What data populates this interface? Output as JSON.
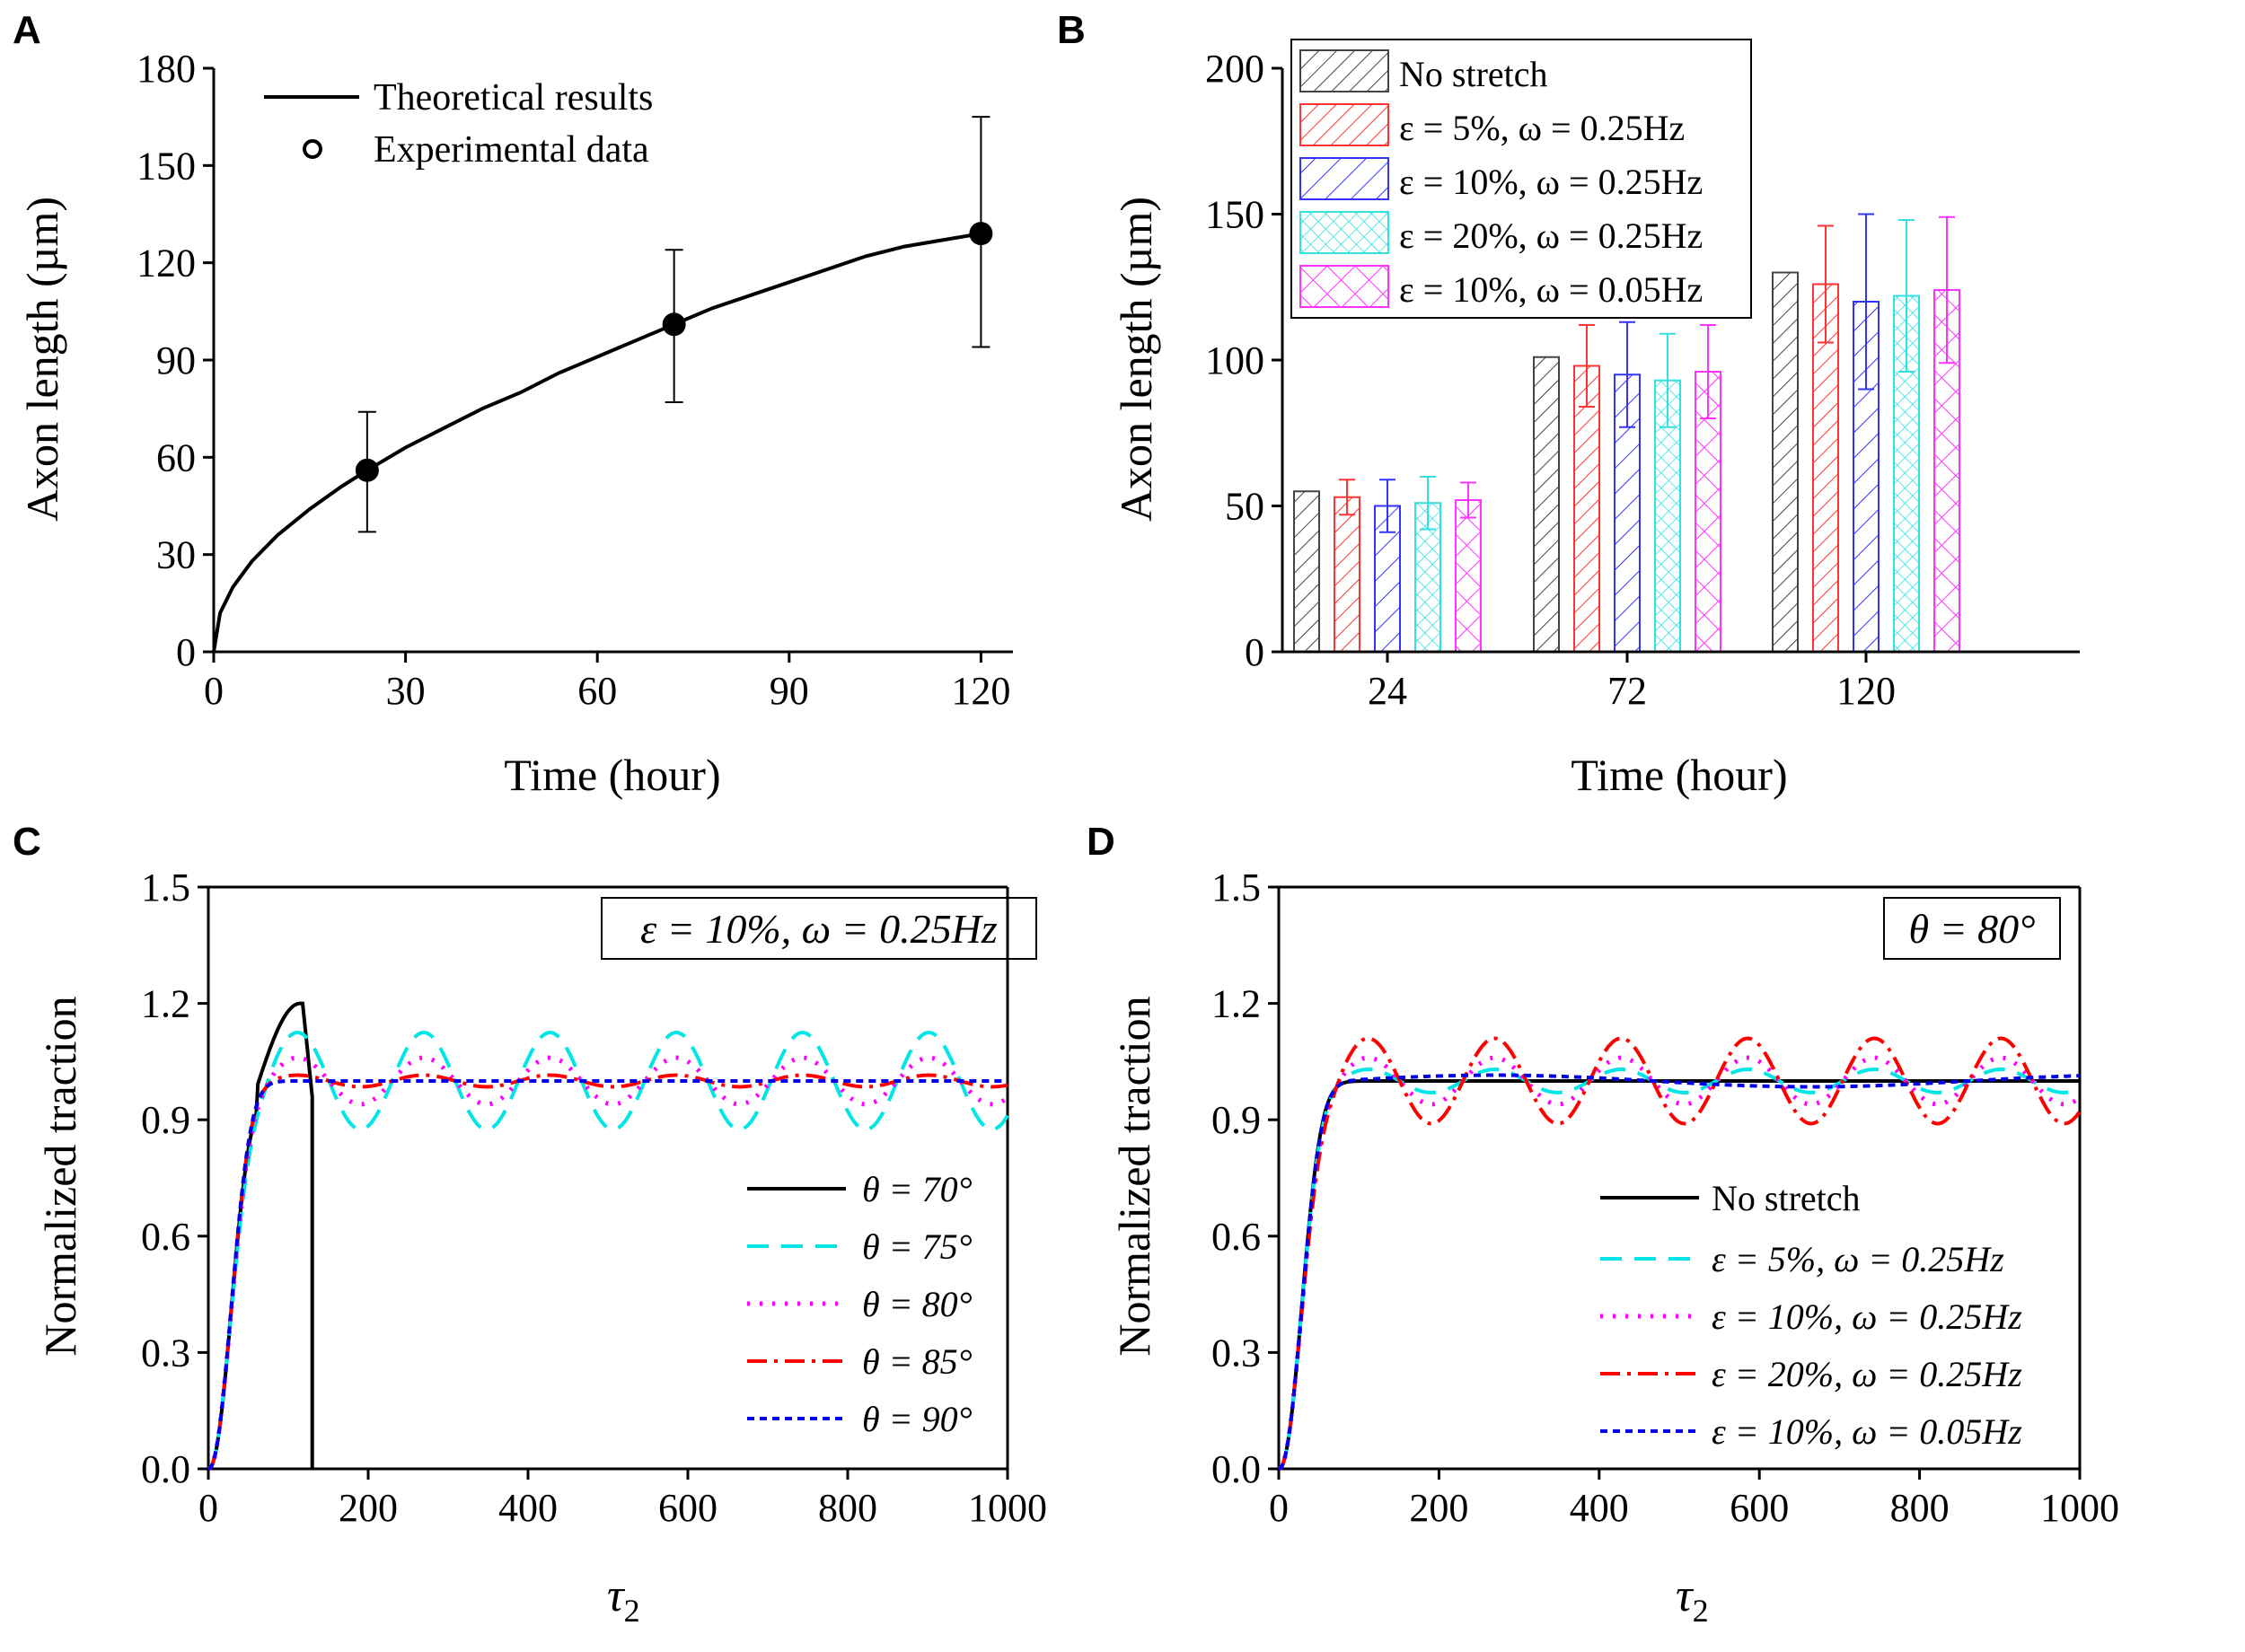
{
  "colors": {
    "axis": "#000000",
    "series_black": "#000000",
    "series_cyan": "#00e5e5",
    "series_magenta": "#ff00ff",
    "series_red": "#ff0000",
    "series_blue": "#0000ee",
    "bar_black": "#444444",
    "bar_red": "#ff3333",
    "bar_blue": "#3333ff",
    "bar_cyan": "#33e0e0",
    "bar_magenta": "#ff33ff"
  },
  "chart_data": [
    {
      "panel": "A",
      "type": "line",
      "xlabel": "Time (hour)",
      "ylabel": "Axon length (µm)",
      "xlim": [
        0,
        125
      ],
      "ylim": [
        0,
        180
      ],
      "xticks": [
        0,
        30,
        60,
        90,
        120
      ],
      "yticks": [
        0,
        30,
        60,
        90,
        120,
        150,
        180
      ],
      "legend_position": "top-left",
      "legend": [
        "Theoretical results",
        "Experimental data"
      ],
      "series": [
        {
          "name": "Theoretical results",
          "kind": "line",
          "x": [
            0,
            1,
            3,
            6,
            10,
            15,
            20,
            24,
            30,
            36,
            42,
            48,
            54,
            60,
            66,
            72,
            78,
            84,
            90,
            96,
            102,
            108,
            114,
            120
          ],
          "values": [
            0,
            12,
            20,
            28,
            36,
            44,
            51,
            56,
            63,
            69,
            75,
            80,
            86,
            91,
            96,
            101,
            106,
            110,
            114,
            118,
            122,
            125,
            127,
            129
          ]
        },
        {
          "name": "Experimental data",
          "kind": "scatter",
          "x": [
            24,
            72,
            120
          ],
          "values": [
            56,
            101,
            129
          ],
          "err_low": [
            37,
            77,
            94
          ],
          "err_high": [
            74,
            124,
            165
          ]
        }
      ]
    },
    {
      "panel": "B",
      "type": "bar",
      "xlabel": "Time (hour)",
      "ylabel": "Axon length (µm)",
      "ylim": [
        0,
        200
      ],
      "yticks": [
        0,
        50,
        100,
        150,
        200
      ],
      "categories": [
        "24",
        "72",
        "120"
      ],
      "legend_position": "top-left",
      "series": [
        {
          "name": "No stretch",
          "values": [
            55,
            101,
            130
          ],
          "err": [
            0,
            0,
            0
          ]
        },
        {
          "name": "ε = 5%, ω = 0.25Hz",
          "values": [
            53,
            98,
            126
          ],
          "err": [
            6,
            14,
            20
          ]
        },
        {
          "name": "ε = 10%, ω = 0.25Hz",
          "values": [
            50,
            95,
            120
          ],
          "err": [
            9,
            18,
            30
          ]
        },
        {
          "name": "ε = 20%, ω = 0.25Hz",
          "values": [
            51,
            93,
            122
          ],
          "err": [
            9,
            16,
            26
          ]
        },
        {
          "name": "ε = 10%, ω = 0.05Hz",
          "values": [
            52,
            96,
            124
          ],
          "err": [
            6,
            16,
            25
          ]
        }
      ]
    },
    {
      "panel": "C",
      "type": "line",
      "xlabel": "τ2",
      "ylabel": "Normalized traction",
      "xlim": [
        0,
        1000
      ],
      "ylim": [
        0,
        1.5
      ],
      "xticks": [
        0,
        200,
        400,
        600,
        800,
        1000
      ],
      "yticks": [
        0.0,
        0.3,
        0.6,
        0.9,
        1.2,
        1.5
      ],
      "annotation": "ε = 10%, ω = 0.25Hz",
      "legend_position": "bottom-right",
      "series": [
        {
          "name": "θ = 70°",
          "amplitude": 0,
          "period": 0,
          "peak": 1.2,
          "drop_at": 130
        },
        {
          "name": "θ = 75°",
          "amplitude": 0.125,
          "period": 158
        },
        {
          "name": "θ = 80°",
          "amplitude": 0.06,
          "period": 158
        },
        {
          "name": "θ = 85°",
          "amplitude": 0.015,
          "period": 158
        },
        {
          "name": "θ = 90°",
          "amplitude": 0,
          "period": 158
        }
      ]
    },
    {
      "panel": "D",
      "type": "line",
      "xlabel": "τ2",
      "ylabel": "Normalized traction",
      "xlim": [
        0,
        1000
      ],
      "ylim": [
        0,
        1.5
      ],
      "xticks": [
        0,
        200,
        400,
        600,
        800,
        1000
      ],
      "yticks": [
        0.0,
        0.3,
        0.6,
        0.9,
        1.2,
        1.5
      ],
      "annotation": "θ = 80°",
      "legend_position": "bottom-right",
      "series": [
        {
          "name": "No stretch",
          "amplitude": 0,
          "period": 158
        },
        {
          "name": "ε = 5%, ω = 0.25Hz",
          "amplitude": 0.03,
          "period": 158
        },
        {
          "name": "ε = 10%, ω = 0.25Hz",
          "amplitude": 0.06,
          "period": 158
        },
        {
          "name": "ε = 20%, ω = 0.25Hz",
          "amplitude": 0.11,
          "period": 158
        },
        {
          "name": "ε = 10%, ω = 0.05Hz",
          "amplitude": 0.015,
          "period": 790
        }
      ]
    }
  ],
  "panels": {
    "a": {
      "letter": "A",
      "xlabel": "Time (hour)",
      "ylabel": "Axon length (µm)",
      "legend1": "Theoretical results",
      "legend2": "Experimental data"
    },
    "b": {
      "letter": "B",
      "xlabel": "Time (hour)",
      "ylabel": "Axon length (µm)",
      "legend": [
        "No stretch",
        "ε = 5%, ω = 0.25Hz",
        "ε = 10%, ω = 0.25Hz",
        "ε = 20%, ω = 0.25Hz",
        "ε = 10%, ω = 0.05Hz"
      ]
    },
    "c": {
      "letter": "C",
      "xlabel": "τ",
      "xlabel_sub": "2",
      "ylabel": "Normalized traction",
      "annotation": "ε = 10%, ω = 0.25Hz",
      "legend": [
        "θ = 70°",
        "θ = 75°",
        "θ = 80°",
        "θ = 85°",
        "θ = 90°"
      ]
    },
    "d": {
      "letter": "D",
      "xlabel": "τ",
      "xlabel_sub": "2",
      "ylabel": "Normalized traction",
      "annotation": "θ = 80°",
      "legend": [
        "No stretch",
        "ε = 5%, ω = 0.25Hz",
        "ε = 10%, ω = 0.25Hz",
        "ε = 20%, ω = 0.25Hz",
        "ε = 10%, ω = 0.05Hz"
      ]
    }
  }
}
